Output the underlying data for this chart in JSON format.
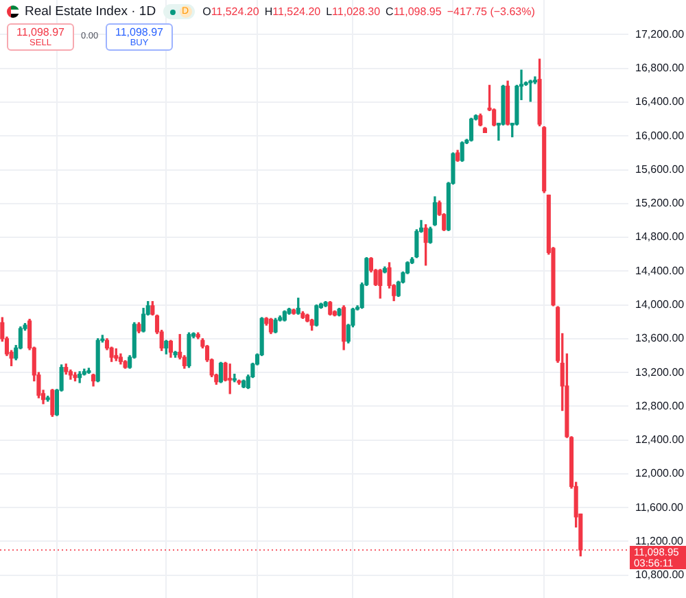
{
  "chart_data": {
    "type": "candlestick",
    "title": "Real Estate Index · 1D",
    "annotations": [
      "O",
      "11,524.20",
      "H",
      "11,524.20",
      "L",
      "11,028.30",
      "C",
      "11,098.95",
      "−417.75 (−3.63%)",
      "11,098.97",
      "SELL",
      "0.00",
      "11,098.97",
      "BUY",
      "D",
      "03:56:11"
    ],
    "categories": [
      null,
      null,
      null,
      null,
      null,
      null,
      null,
      null,
      null,
      null,
      null,
      null,
      null,
      null,
      null,
      null,
      null,
      null,
      null,
      null,
      null,
      null,
      null,
      null,
      null,
      null,
      null,
      null,
      null,
      null,
      null,
      null,
      null,
      null,
      null,
      null,
      null,
      null,
      null,
      null,
      null,
      null,
      null,
      null,
      null,
      null,
      null,
      null,
      null,
      null,
      null,
      null,
      null,
      null,
      null,
      null,
      null,
      null,
      null,
      null,
      null,
      null,
      null,
      null,
      null,
      null,
      null,
      null,
      null,
      null,
      null,
      null,
      null,
      null,
      null,
      null,
      null,
      null,
      null,
      null,
      null,
      null,
      null,
      null,
      null,
      null,
      null,
      null,
      null,
      null,
      null,
      null,
      null,
      null,
      null,
      null,
      null,
      null,
      null,
      null,
      null,
      null,
      null,
      null,
      null,
      null,
      null,
      null,
      null,
      null,
      null,
      null,
      null,
      null,
      null,
      null,
      null,
      null,
      null,
      null,
      null,
      null,
      null,
      null,
      null,
      null,
      null,
      null,
      null,
      null,
      null,
      null,
      null,
      null,
      null,
      null,
      null,
      null
    ],
    "ohlc": [
      [
        13790,
        13850,
        13570,
        13600
      ],
      [
        13600,
        13620,
        13400,
        13420
      ],
      [
        13440,
        13460,
        13280,
        13370
      ],
      [
        13370,
        13520,
        13350,
        13490
      ],
      [
        13490,
        13740,
        13480,
        13720
      ],
      [
        13720,
        13780,
        13700,
        13760
      ],
      [
        13810,
        13830,
        13470,
        13490
      ],
      [
        13490,
        13500,
        13100,
        13170
      ],
      [
        13170,
        13200,
        12900,
        12930
      ],
      [
        12950,
        12990,
        12830,
        12880
      ],
      [
        12880,
        12920,
        12860,
        12900
      ],
      [
        12990,
        13000,
        12680,
        12700
      ],
      [
        12700,
        13000,
        12690,
        12990
      ],
      [
        12990,
        13290,
        12980,
        13260
      ],
      [
        13260,
        13300,
        13180,
        13210
      ],
      [
        13210,
        13230,
        13120,
        13170
      ],
      [
        13170,
        13200,
        13100,
        13140
      ],
      [
        13140,
        13210,
        13080,
        13180
      ],
      [
        13180,
        13240,
        13170,
        13210
      ],
      [
        13200,
        13250,
        13190,
        13220
      ],
      [
        13170,
        13180,
        13040,
        13100
      ],
      [
        13100,
        13600,
        13090,
        13580
      ],
      [
        13580,
        13640,
        13560,
        13590
      ],
      [
        13580,
        13600,
        13470,
        13490
      ],
      [
        13490,
        13500,
        13330,
        13380
      ],
      [
        13400,
        13480,
        13340,
        13370
      ],
      [
        13380,
        13420,
        13300,
        13330
      ],
      [
        13330,
        13340,
        13250,
        13260
      ],
      [
        13260,
        13400,
        13250,
        13380
      ],
      [
        13380,
        13790,
        13370,
        13770
      ],
      [
        13770,
        13790,
        13670,
        13690
      ],
      [
        13690,
        13960,
        13680,
        13890
      ],
      [
        13890,
        14040,
        13880,
        13990
      ],
      [
        13990,
        14040,
        13880,
        13890
      ],
      [
        13870,
        13880,
        13660,
        13680
      ],
      [
        13680,
        13700,
        13460,
        13490
      ],
      [
        13490,
        13580,
        13420,
        13570
      ],
      [
        13570,
        13580,
        13380,
        13440
      ],
      [
        13410,
        13450,
        13380,
        13440
      ],
      [
        13440,
        13650,
        13360,
        13380
      ],
      [
        13380,
        13400,
        13250,
        13280
      ],
      [
        13280,
        13670,
        13260,
        13650
      ],
      [
        13630,
        13670,
        13610,
        13660
      ],
      [
        13650,
        13670,
        13600,
        13620
      ],
      [
        13580,
        13600,
        13490,
        13510
      ],
      [
        13510,
        13520,
        13330,
        13350
      ],
      [
        13350,
        13360,
        13150,
        13170
      ],
      [
        13170,
        13180,
        13060,
        13090
      ],
      [
        13090,
        13320,
        13080,
        13310
      ],
      [
        13310,
        13320,
        13100,
        13110
      ],
      [
        13130,
        13300,
        12950,
        13110
      ],
      [
        13110,
        13180,
        13090,
        13120
      ],
      [
        13100,
        13110,
        13060,
        13080
      ],
      [
        13030,
        13110,
        13020,
        13100
      ],
      [
        13020,
        13170,
        13010,
        13150
      ],
      [
        13150,
        13310,
        13140,
        13300
      ],
      [
        13300,
        13420,
        13290,
        13410
      ],
      [
        13410,
        13850,
        13400,
        13840
      ],
      [
        13840,
        13850,
        13760,
        13780
      ],
      [
        13830,
        13840,
        13660,
        13680
      ],
      [
        13680,
        13840,
        13670,
        13820
      ],
      [
        13820,
        13870,
        13810,
        13850
      ],
      [
        13820,
        13930,
        13810,
        13920
      ],
      [
        13900,
        13960,
        13890,
        13950
      ],
      [
        13940,
        13950,
        13890,
        13900
      ],
      [
        13900,
        14080,
        13890,
        13960
      ],
      [
        13900,
        13920,
        13840,
        13850
      ],
      [
        13880,
        13890,
        13800,
        13810
      ],
      [
        13820,
        13830,
        13700,
        13760
      ],
      [
        13760,
        14000,
        13750,
        13990
      ],
      [
        13970,
        14020,
        13960,
        14010
      ],
      [
        13990,
        14040,
        13980,
        14030
      ],
      [
        14030,
        14040,
        13880,
        13890
      ],
      [
        13920,
        13930,
        13870,
        13880
      ],
      [
        13880,
        13960,
        13870,
        13950
      ],
      [
        13970,
        13990,
        13470,
        13570
      ],
      [
        13570,
        13770,
        13550,
        13760
      ],
      [
        13760,
        13960,
        13740,
        13950
      ],
      [
        13950,
        13990,
        13940,
        13970
      ],
      [
        13970,
        14260,
        13960,
        14240
      ],
      [
        14240,
        14560,
        14230,
        14550
      ],
      [
        14550,
        14560,
        14390,
        14410
      ],
      [
        14410,
        14420,
        14230,
        14240
      ],
      [
        14410,
        14420,
        14080,
        14230
      ],
      [
        14390,
        14450,
        14380,
        14430
      ],
      [
        14440,
        14500,
        14200,
        14230
      ],
      [
        14230,
        14240,
        14050,
        14110
      ],
      [
        14110,
        14280,
        14100,
        14270
      ],
      [
        14270,
        14390,
        14260,
        14380
      ],
      [
        14380,
        14510,
        14370,
        14500
      ],
      [
        14500,
        14560,
        14490,
        14540
      ],
      [
        14570,
        14890,
        14560,
        14870
      ],
      [
        14870,
        15000,
        14860,
        14910
      ],
      [
        14910,
        14950,
        14470,
        14740
      ],
      [
        14740,
        14920,
        14730,
        14900
      ],
      [
        14950,
        15280,
        14940,
        15210
      ],
      [
        15210,
        15230,
        15060,
        15070
      ],
      [
        15070,
        15080,
        14880,
        14890
      ],
      [
        14890,
        15450,
        14880,
        15440
      ],
      [
        15440,
        15800,
        15430,
        15790
      ],
      [
        15800,
        15830,
        15700,
        15710
      ],
      [
        15710,
        15930,
        15700,
        15920
      ],
      [
        15920,
        15960,
        15910,
        15950
      ],
      [
        15950,
        16210,
        15940,
        16200
      ],
      [
        16200,
        16250,
        16190,
        16240
      ],
      [
        16240,
        16260,
        16120,
        16130
      ],
      [
        16090,
        16100,
        16040,
        16040
      ],
      [
        16330,
        16600,
        16300,
        16310
      ],
      [
        16310,
        16320,
        16120,
        16130
      ],
      [
        16130,
        16150,
        15950,
        16150
      ],
      [
        16140,
        16600,
        16130,
        16590
      ],
      [
        16590,
        16650,
        16130,
        16140
      ],
      [
        16130,
        16150,
        15990,
        16150
      ],
      [
        16140,
        16600,
        16130,
        16590
      ],
      [
        16590,
        16780,
        16430,
        16610
      ],
      [
        16610,
        16640,
        16600,
        16630
      ],
      [
        16630,
        16660,
        16410,
        16650
      ],
      [
        16640,
        16700,
        16620,
        16660
      ],
      [
        16670,
        16910,
        16120,
        16140
      ],
      [
        16100,
        16110,
        15330,
        15350
      ],
      [
        15300,
        15300,
        14600,
        14620
      ],
      [
        14670,
        14680,
        13990,
        14000
      ],
      [
        13970,
        13980,
        13320,
        13340
      ],
      [
        13310,
        13660,
        12750,
        13040
      ],
      [
        13040,
        13420,
        12430,
        12440
      ],
      [
        12430,
        12440,
        11830,
        11850
      ],
      [
        11850,
        11900,
        11370,
        11490
      ],
      [
        11524.2,
        11524.2,
        11028.3,
        11098.95
      ],
      null,
      null,
      null,
      null,
      null,
      null,
      null,
      null,
      null,
      null
    ],
    "colors": [
      "#f23645",
      "#f23645",
      "#f23645",
      "#089981",
      "#089981",
      "#089981",
      "#f23645",
      "#f23645",
      "#f23645",
      "#f23645",
      "#089981",
      "#f23645",
      "#089981",
      "#089981",
      "#f23645",
      "#f23645",
      "#f23645",
      "#089981",
      "#089981",
      "#089981",
      "#f23645",
      "#089981",
      "#089981",
      "#f23645",
      "#f23645",
      "#f23645",
      "#f23645",
      "#f23645",
      "#089981",
      "#089981",
      "#f23645",
      "#089981",
      "#089981",
      "#f23645",
      "#f23645",
      "#f23645",
      "#089981",
      "#f23645",
      "#089981",
      "#f23645",
      "#f23645",
      "#089981",
      "#089981",
      "#f23645",
      "#f23645",
      "#f23645",
      "#f23645",
      "#f23645",
      "#089981",
      "#f23645",
      "#f23645",
      "#089981",
      "#f23645",
      "#089981",
      "#089981",
      "#089981",
      "#089981",
      "#089981",
      "#f23645",
      "#f23645",
      "#089981",
      "#089981",
      "#089981",
      "#089981",
      "#f23645",
      "#089981",
      "#f23645",
      "#f23645",
      "#f23645",
      "#089981",
      "#089981",
      "#089981",
      "#f23645",
      "#f23645",
      "#089981",
      "#f23645",
      "#089981",
      "#089981",
      "#089981",
      "#089981",
      "#089981",
      "#f23645",
      "#f23645",
      "#f23645",
      "#089981",
      "#f23645",
      "#f23645",
      "#089981",
      "#089981",
      "#089981",
      "#089981",
      "#089981",
      "#089981",
      "#f23645",
      "#089981",
      "#089981",
      "#f23645",
      "#f23645",
      "#089981",
      "#089981",
      "#f23645",
      "#089981",
      "#089981",
      "#089981",
      "#089981",
      "#f23645",
      "#f23645",
      "#f23645",
      "#f23645",
      "#089981",
      "#089981",
      "#f23645",
      "#089981",
      "#089981",
      "#089981",
      "#089981",
      "#089981",
      "#089981",
      "#f23645",
      "#f23645",
      "#f23645",
      "#f23645",
      "#f23645",
      "#f23645",
      "#f23645",
      "#f23645",
      "#f23645",
      "#f23645",
      null,
      null,
      null,
      null,
      null,
      null,
      null,
      null,
      null,
      null
    ],
    "ylim": [
      10530,
      17610
    ],
    "yticks": [
      {
        "value": 10800,
        "label": "10,800.00"
      },
      {
        "value": 11200,
        "label": "11,200.00"
      },
      {
        "value": 11600,
        "label": "11,600.00"
      },
      {
        "value": 12000,
        "label": "12,000.00"
      },
      {
        "value": 12400,
        "label": "12,400.00"
      },
      {
        "value": 12800,
        "label": "12,800.00"
      },
      {
        "value": 13200,
        "label": "13,200.00"
      },
      {
        "value": 13600,
        "label": "13,600.00"
      },
      {
        "value": 14000,
        "label": "14,000.00"
      },
      {
        "value": 14400,
        "label": "14,400.00"
      },
      {
        "value": 14800,
        "label": "14,800.00"
      },
      {
        "value": 15200,
        "label": "15,200.00"
      },
      {
        "value": 15600,
        "label": "15,600.00"
      },
      {
        "value": 16000,
        "label": "16,000.00"
      },
      {
        "value": 16400,
        "label": "16,400.00"
      },
      {
        "value": 16800,
        "label": "16,800.00"
      },
      {
        "value": 17200,
        "label": "17,200.00"
      }
    ],
    "grid": true,
    "tick_labels": "y",
    "ref_lines": [
      {
        "axis": "y",
        "value": 11098.95,
        "label": "11,098.95",
        "color": "#f23645",
        "line_style": "dotted"
      }
    ]
  }
}
